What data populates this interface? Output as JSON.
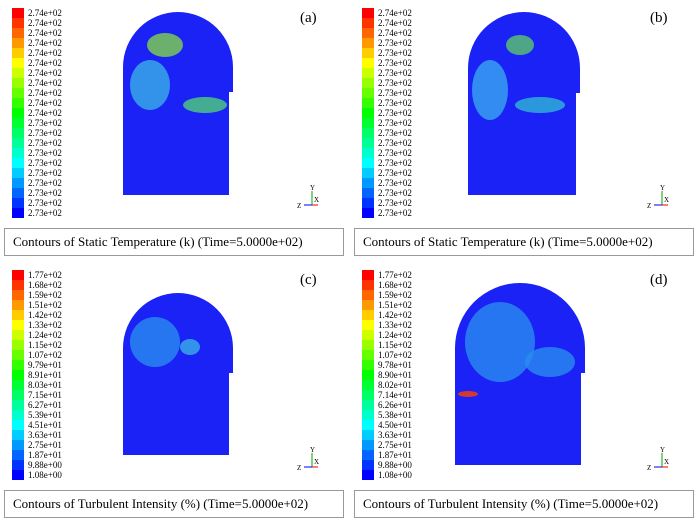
{
  "panels": [
    {
      "label": "(a)",
      "legend": [
        "2.74e+02",
        "2.74e+02",
        "2.74e+02",
        "2.74e+02",
        "2.74e+02",
        "2.74e+02",
        "2.74e+02",
        "2.74e+02",
        "2.74e+02",
        "2.74e+02",
        "2.74e+02",
        "2.73e+02",
        "2.73e+02",
        "2.73e+02",
        "2.73e+02",
        "2.73e+02",
        "2.73e+02",
        "2.73e+02",
        "2.73e+02",
        "2.73e+02",
        "2.73e+02"
      ],
      "axes": [
        "Y",
        "Z",
        "X"
      ],
      "caption": "Contours of Static Temperature (k) (Time=5.0000e+02)"
    },
    {
      "label": "(b)",
      "legend": [
        "2.74e+02",
        "2.74e+02",
        "2.74e+02",
        "2.73e+02",
        "2.73e+02",
        "2.73e+02",
        "2.73e+02",
        "2.73e+02",
        "2.73e+02",
        "2.73e+02",
        "2.73e+02",
        "2.73e+02",
        "2.73e+02",
        "2.73e+02",
        "2.73e+02",
        "2.73e+02",
        "2.73e+02",
        "2.73e+02",
        "2.73e+02",
        "2.73e+02",
        "2.73e+02"
      ],
      "axes": [
        "Y",
        "Z",
        "X"
      ],
      "caption": "Contours of Static Temperature (k) (Time=5.0000e+02)"
    },
    {
      "label": "(c)",
      "legend": [
        "1.77e+02",
        "1.68e+02",
        "1.59e+02",
        "1.51e+02",
        "1.42e+02",
        "1.33e+02",
        "1.24e+02",
        "1.15e+02",
        "1.07e+02",
        "9.79e+01",
        "8.91e+01",
        "8.03e+01",
        "7.15e+01",
        "6.27e+01",
        "5.39e+01",
        "4.51e+01",
        "3.63e+01",
        "2.75e+01",
        "1.87e+01",
        "9.88e+00",
        "1.08e+00"
      ],
      "axes": [
        "Y",
        "Z",
        "X"
      ],
      "caption": "Contours of Turbulent Intensity (%) (Time=5.0000e+02)"
    },
    {
      "label": "(d)",
      "legend": [
        "1.77e+02",
        "1.68e+02",
        "1.59e+02",
        "1.51e+02",
        "1.42e+02",
        "1.33e+02",
        "1.24e+02",
        "1.15e+02",
        "1.07e+02",
        "9.78e+01",
        "8.90e+01",
        "8.02e+01",
        "7.14e+01",
        "6.26e+01",
        "5.38e+01",
        "4.50e+01",
        "3.63e+01",
        "2.75e+01",
        "1.87e+01",
        "9.88e+00",
        "1.08e+00"
      ],
      "axes": [
        "Y",
        "Z",
        "X"
      ],
      "caption": "Contours of Turbulent Intensity (%) (Time=5.0000e+02)"
    }
  ]
}
